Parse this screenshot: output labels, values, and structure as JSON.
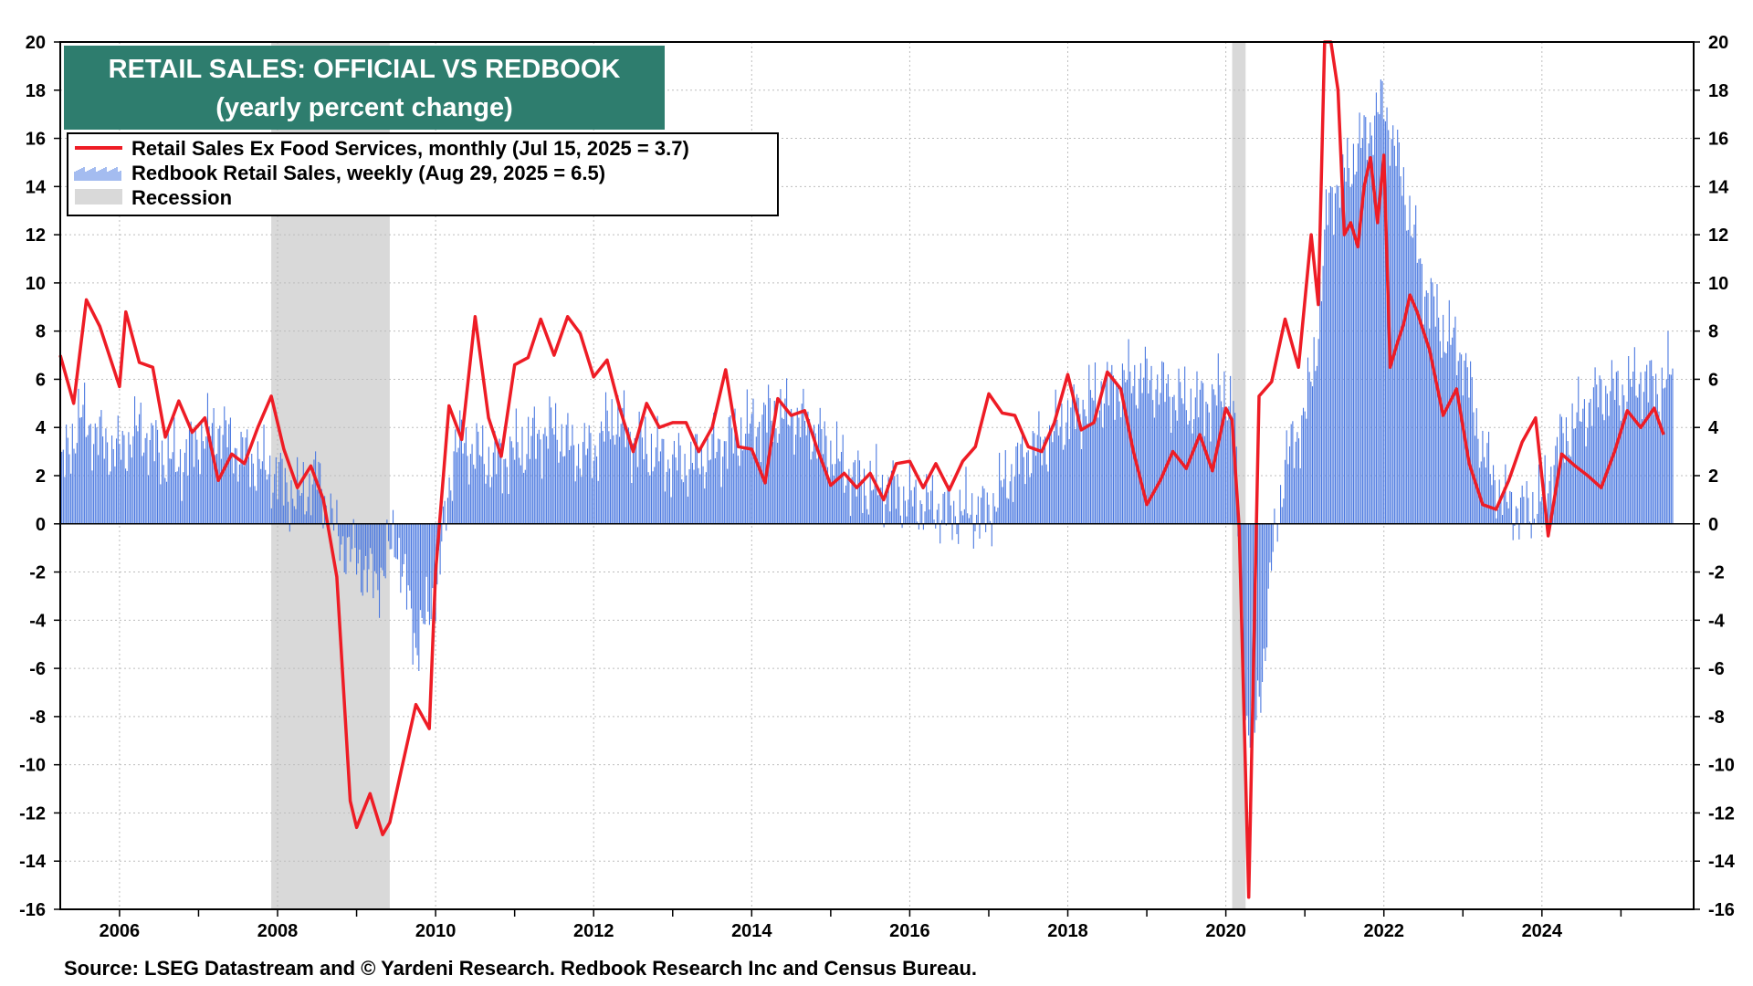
{
  "chart_data": {
    "type": "line",
    "title": "RETAIL SALES: OFFICIAL VS REDBOOK",
    "subtitle": "(yearly percent change)",
    "source": "Source: LSEG Datastream and © Yardeni Research. Redbook Research Inc and Census Bureau.",
    "xlim": [
      2005.25,
      2025.92
    ],
    "ylim": [
      -16,
      20
    ],
    "y_ticks": [
      "20",
      "18",
      "16",
      "14",
      "12",
      "10",
      "8",
      "6",
      "4",
      "2",
      "0",
      "-2",
      "-4",
      "-6",
      "-8",
      "-10",
      "-12",
      "-14",
      "-16"
    ],
    "x_ticks": [
      "2006",
      "2008",
      "2010",
      "2012",
      "2014",
      "2016",
      "2018",
      "2020",
      "2022",
      "2024"
    ],
    "grid": true,
    "legend_placement": "top-left",
    "legend": {
      "line_label": "Retail Sales Ex Food Services, monthly (Jul 15, 2025 = 3.7)",
      "bar_label": "Redbook Retail Sales, weekly (Aug 29, 2025 = 6.5)",
      "recession_label": "Recession"
    },
    "colors": {
      "line": "#ee1c25",
      "bars": "#4a78e0",
      "recession": "#d9d9d9",
      "title_bg": "#2e7d6e"
    },
    "recessions": [
      [
        2007.92,
        2009.42
      ],
      [
        2020.08,
        2020.25
      ]
    ],
    "series": [
      {
        "name": "Retail Sales Ex Food Services, monthly",
        "type": "line",
        "x": [
          2005.25,
          2005.42,
          2005.58,
          2005.75,
          2006.0,
          2006.08,
          2006.25,
          2006.42,
          2006.58,
          2006.75,
          2006.92,
          2007.08,
          2007.25,
          2007.42,
          2007.58,
          2007.75,
          2007.92,
          2008.08,
          2008.25,
          2008.42,
          2008.58,
          2008.75,
          2008.92,
          2009.0,
          2009.17,
          2009.33,
          2009.42,
          2009.58,
          2009.75,
          2009.92,
          2010.0,
          2010.17,
          2010.33,
          2010.5,
          2010.67,
          2010.83,
          2011.0,
          2011.17,
          2011.33,
          2011.5,
          2011.67,
          2011.83,
          2012.0,
          2012.17,
          2012.33,
          2012.5,
          2012.67,
          2012.83,
          2013.0,
          2013.17,
          2013.33,
          2013.5,
          2013.67,
          2013.83,
          2014.0,
          2014.17,
          2014.33,
          2014.5,
          2014.67,
          2014.83,
          2015.0,
          2015.17,
          2015.33,
          2015.5,
          2015.67,
          2015.83,
          2016.0,
          2016.17,
          2016.33,
          2016.5,
          2016.67,
          2016.83,
          2017.0,
          2017.17,
          2017.33,
          2017.5,
          2017.67,
          2017.83,
          2018.0,
          2018.17,
          2018.33,
          2018.5,
          2018.67,
          2018.83,
          2019.0,
          2019.17,
          2019.33,
          2019.5,
          2019.67,
          2019.83,
          2020.0,
          2020.08,
          2020.17,
          2020.29,
          2020.42,
          2020.58,
          2020.75,
          2020.92,
          2021.08,
          2021.17,
          2021.25,
          2021.33,
          2021.42,
          2021.5,
          2021.58,
          2021.67,
          2021.75,
          2021.83,
          2021.92,
          2022.0,
          2022.08,
          2022.17,
          2022.25,
          2022.33,
          2022.42,
          2022.58,
          2022.75,
          2022.92,
          2023.08,
          2023.25,
          2023.42,
          2023.58,
          2023.75,
          2023.92,
          2024.08,
          2024.25,
          2024.42,
          2024.58,
          2024.75,
          2024.92,
          2025.08,
          2025.25,
          2025.42,
          2025.54
        ],
        "values": [
          7.0,
          5.0,
          9.3,
          8.2,
          5.7,
          8.8,
          6.7,
          6.5,
          3.6,
          5.1,
          3.8,
          4.4,
          1.8,
          2.9,
          2.5,
          4.0,
          5.3,
          3.1,
          1.5,
          2.4,
          1.0,
          -2.2,
          -11.5,
          -12.6,
          -11.2,
          -12.9,
          -12.4,
          -10.0,
          -7.5,
          -8.5,
          -2.0,
          4.9,
          3.5,
          8.6,
          4.4,
          2.8,
          6.6,
          6.9,
          8.5,
          7.0,
          8.6,
          7.9,
          6.1,
          6.8,
          4.8,
          3.0,
          5.0,
          4.0,
          4.2,
          4.2,
          3.0,
          4.0,
          6.4,
          3.2,
          3.1,
          1.7,
          5.2,
          4.5,
          4.7,
          3.1,
          1.6,
          2.1,
          1.5,
          2.1,
          1.0,
          2.5,
          2.6,
          1.5,
          2.5,
          1.4,
          2.6,
          3.2,
          5.4,
          4.6,
          4.5,
          3.2,
          3.0,
          4.2,
          6.2,
          3.9,
          4.2,
          6.3,
          5.6,
          3.0,
          0.8,
          1.8,
          3.0,
          2.3,
          3.7,
          2.2,
          4.8,
          4.3,
          -0.2,
          -15.5,
          5.3,
          5.9,
          8.5,
          6.5,
          12.0,
          9.1,
          21.0,
          23.0,
          18.0,
          12.0,
          12.5,
          11.5,
          14.0,
          15.2,
          12.5,
          15.3,
          6.5,
          7.5,
          8.3,
          9.5,
          8.8,
          7.2,
          4.5,
          5.6,
          2.5,
          0.8,
          0.6,
          1.8,
          3.4,
          4.4,
          -0.5,
          2.9,
          2.4,
          2.0,
          1.5,
          3.0,
          4.7,
          4.0,
          4.8,
          3.7
        ]
      },
      {
        "name": "Redbook Retail Sales, weekly",
        "type": "bar",
        "x": [
          2005.25,
          2005.5,
          2005.75,
          2006.0,
          2006.25,
          2006.5,
          2006.75,
          2007.0,
          2007.25,
          2007.5,
          2007.75,
          2008.0,
          2008.25,
          2008.5,
          2008.75,
          2009.0,
          2009.25,
          2009.5,
          2009.75,
          2010.0,
          2010.25,
          2010.5,
          2010.75,
          2011.0,
          2011.25,
          2011.5,
          2011.75,
          2012.0,
          2012.25,
          2012.5,
          2012.75,
          2013.0,
          2013.25,
          2013.5,
          2013.75,
          2014.0,
          2014.25,
          2014.5,
          2014.75,
          2015.0,
          2015.25,
          2015.5,
          2015.75,
          2016.0,
          2016.25,
          2016.5,
          2016.75,
          2017.0,
          2017.25,
          2017.5,
          2017.75,
          2018.0,
          2018.25,
          2018.5,
          2018.75,
          2019.0,
          2019.25,
          2019.5,
          2019.75,
          2020.0,
          2020.1,
          2020.2,
          2020.25,
          2020.35,
          2020.5,
          2020.6,
          2020.75,
          2021.0,
          2021.15,
          2021.3,
          2021.5,
          2021.75,
          2022.0,
          2022.25,
          2022.5,
          2022.75,
          2023.0,
          2023.25,
          2023.5,
          2023.75,
          2024.0,
          2024.25,
          2024.5,
          2024.75,
          2025.0,
          2025.25,
          2025.5,
          2025.66
        ],
        "values": [
          2.0,
          4.5,
          3.5,
          3.0,
          4.0,
          3.0,
          2.5,
          3.5,
          4.0,
          3.0,
          2.5,
          2.0,
          1.0,
          2.0,
          -0.5,
          -1.5,
          -2.5,
          -0.5,
          -5.0,
          -3.0,
          3.5,
          3.0,
          2.5,
          3.0,
          3.5,
          4.0,
          3.0,
          3.0,
          4.5,
          3.5,
          3.0,
          2.5,
          2.5,
          3.0,
          3.5,
          4.0,
          4.5,
          4.5,
          4.0,
          3.0,
          2.0,
          1.5,
          1.5,
          1.0,
          0.8,
          0.5,
          0.5,
          0.5,
          2.0,
          3.0,
          3.5,
          4.5,
          5.0,
          5.5,
          6.0,
          6.0,
          5.5,
          5.0,
          5.0,
          5.5,
          5.0,
          -4.0,
          -8.0,
          -9.0,
          -5.0,
          -1.0,
          2.5,
          4.5,
          7.5,
          13.5,
          14.5,
          16.0,
          17.5,
          14.0,
          10.0,
          8.0,
          7.0,
          3.0,
          1.0,
          0.5,
          1.0,
          3.5,
          4.5,
          5.5,
          5.5,
          6.0,
          5.5,
          6.5
        ]
      }
    ]
  }
}
